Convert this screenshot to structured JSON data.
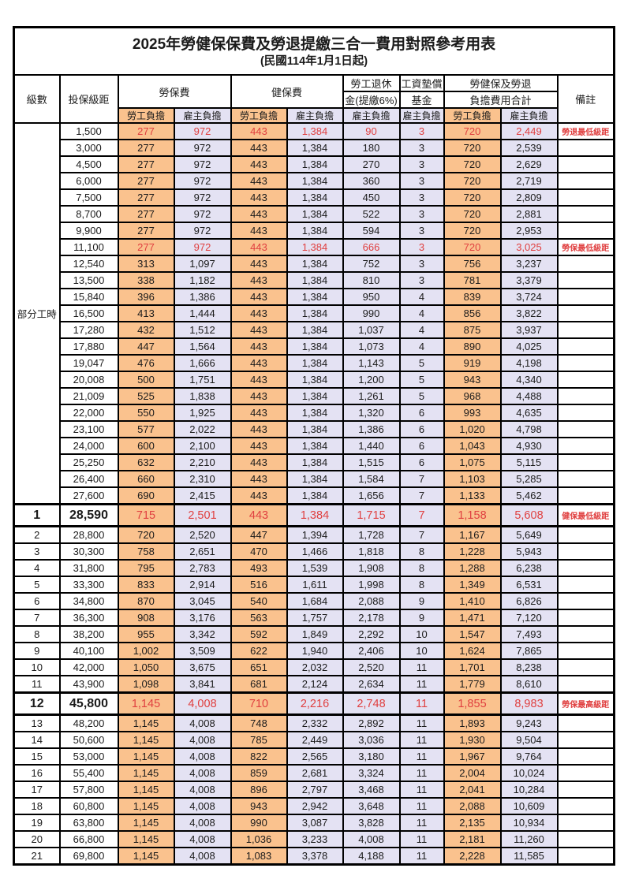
{
  "title": "2025年勞健保保費及勞退提繳三合一費用對照參考用表",
  "subtitle": "(民國114年1月1日起)",
  "colors": {
    "employee_bg": "#FAC28E",
    "employer_bg": "#E4E2F3",
    "highlight_red": "#E04040",
    "note_red": "#F26A6A",
    "border": "#000000"
  },
  "header": {
    "level": "級數",
    "bracket": "投保級距",
    "labor_ins": "勞保費",
    "health_ins": "健保費",
    "pension_l1": "勞工退休",
    "pension_l2": "金(提繳6%)",
    "wage_fund_l1": "工資墊償",
    "wage_fund_l2": "基金",
    "total_l1": "勞健保及勞退",
    "total_l2": "負擔費用合計",
    "employee": "勞工負擔",
    "employer": "雇主負擔",
    "remark": "備註"
  },
  "part_time_label": "部分工時",
  "part_time_rowspan": 23,
  "rows": [
    {
      "level": "",
      "bracket": "1,500",
      "v": [
        "277",
        "972",
        "443",
        "1,384",
        "90",
        "3",
        "720",
        "2,449"
      ],
      "note": "勞退最低級距",
      "red": true,
      "emph": false
    },
    {
      "level": "",
      "bracket": "3,000",
      "v": [
        "277",
        "972",
        "443",
        "1,384",
        "180",
        "3",
        "720",
        "2,539"
      ],
      "note": "",
      "red": false,
      "emph": false
    },
    {
      "level": "",
      "bracket": "4,500",
      "v": [
        "277",
        "972",
        "443",
        "1,384",
        "270",
        "3",
        "720",
        "2,629"
      ],
      "note": "",
      "red": false,
      "emph": false
    },
    {
      "level": "",
      "bracket": "6,000",
      "v": [
        "277",
        "972",
        "443",
        "1,384",
        "360",
        "3",
        "720",
        "2,719"
      ],
      "note": "",
      "red": false,
      "emph": false
    },
    {
      "level": "",
      "bracket": "7,500",
      "v": [
        "277",
        "972",
        "443",
        "1,384",
        "450",
        "3",
        "720",
        "2,809"
      ],
      "note": "",
      "red": false,
      "emph": false
    },
    {
      "level": "",
      "bracket": "8,700",
      "v": [
        "277",
        "972",
        "443",
        "1,384",
        "522",
        "3",
        "720",
        "2,881"
      ],
      "note": "",
      "red": false,
      "emph": false
    },
    {
      "level": "",
      "bracket": "9,900",
      "v": [
        "277",
        "972",
        "443",
        "1,384",
        "594",
        "3",
        "720",
        "2,953"
      ],
      "note": "",
      "red": false,
      "emph": false
    },
    {
      "level": "",
      "bracket": "11,100",
      "v": [
        "277",
        "972",
        "443",
        "1,384",
        "666",
        "3",
        "720",
        "3,025"
      ],
      "note": "勞保最低級距",
      "red": true,
      "emph": false
    },
    {
      "level": "",
      "bracket": "12,540",
      "v": [
        "313",
        "1,097",
        "443",
        "1,384",
        "752",
        "3",
        "756",
        "3,237"
      ],
      "note": "",
      "red": false,
      "emph": false
    },
    {
      "level": "",
      "bracket": "13,500",
      "v": [
        "338",
        "1,182",
        "443",
        "1,384",
        "810",
        "3",
        "781",
        "3,379"
      ],
      "note": "",
      "red": false,
      "emph": false
    },
    {
      "level": "",
      "bracket": "15,840",
      "v": [
        "396",
        "1,386",
        "443",
        "1,384",
        "950",
        "4",
        "839",
        "3,724"
      ],
      "note": "",
      "red": false,
      "emph": false
    },
    {
      "level": "",
      "bracket": "16,500",
      "v": [
        "413",
        "1,444",
        "443",
        "1,384",
        "990",
        "4",
        "856",
        "3,822"
      ],
      "note": "",
      "red": false,
      "emph": false
    },
    {
      "level": "",
      "bracket": "17,280",
      "v": [
        "432",
        "1,512",
        "443",
        "1,384",
        "1,037",
        "4",
        "875",
        "3,937"
      ],
      "note": "",
      "red": false,
      "emph": false
    },
    {
      "level": "",
      "bracket": "17,880",
      "v": [
        "447",
        "1,564",
        "443",
        "1,384",
        "1,073",
        "4",
        "890",
        "4,025"
      ],
      "note": "",
      "red": false,
      "emph": false
    },
    {
      "level": "",
      "bracket": "19,047",
      "v": [
        "476",
        "1,666",
        "443",
        "1,384",
        "1,143",
        "5",
        "919",
        "4,198"
      ],
      "note": "",
      "red": false,
      "emph": false
    },
    {
      "level": "",
      "bracket": "20,008",
      "v": [
        "500",
        "1,751",
        "443",
        "1,384",
        "1,200",
        "5",
        "943",
        "4,340"
      ],
      "note": "",
      "red": false,
      "emph": false
    },
    {
      "level": "",
      "bracket": "21,009",
      "v": [
        "525",
        "1,838",
        "443",
        "1,384",
        "1,261",
        "5",
        "968",
        "4,488"
      ],
      "note": "",
      "red": false,
      "emph": false
    },
    {
      "level": "",
      "bracket": "22,000",
      "v": [
        "550",
        "1,925",
        "443",
        "1,384",
        "1,320",
        "6",
        "993",
        "4,635"
      ],
      "note": "",
      "red": false,
      "emph": false
    },
    {
      "level": "",
      "bracket": "23,100",
      "v": [
        "577",
        "2,022",
        "443",
        "1,384",
        "1,386",
        "6",
        "1,020",
        "4,798"
      ],
      "note": "",
      "red": false,
      "emph": false
    },
    {
      "level": "",
      "bracket": "24,000",
      "v": [
        "600",
        "2,100",
        "443",
        "1,384",
        "1,440",
        "6",
        "1,043",
        "4,930"
      ],
      "note": "",
      "red": false,
      "emph": false
    },
    {
      "level": "",
      "bracket": "25,250",
      "v": [
        "632",
        "2,210",
        "443",
        "1,384",
        "1,515",
        "6",
        "1,075",
        "5,115"
      ],
      "note": "",
      "red": false,
      "emph": false
    },
    {
      "level": "",
      "bracket": "26,400",
      "v": [
        "660",
        "2,310",
        "443",
        "1,384",
        "1,584",
        "7",
        "1,103",
        "5,285"
      ],
      "note": "",
      "red": false,
      "emph": false
    },
    {
      "level": "",
      "bracket": "27,600",
      "v": [
        "690",
        "2,415",
        "443",
        "1,384",
        "1,656",
        "7",
        "1,133",
        "5,462"
      ],
      "note": "",
      "red": false,
      "emph": false
    },
    {
      "level": "1",
      "bracket": "28,590",
      "v": [
        "715",
        "2,501",
        "443",
        "1,384",
        "1,715",
        "7",
        "1,158",
        "5,608"
      ],
      "note": "健保最低級距",
      "red": true,
      "emph": true
    },
    {
      "level": "2",
      "bracket": "28,800",
      "v": [
        "720",
        "2,520",
        "447",
        "1,394",
        "1,728",
        "7",
        "1,167",
        "5,649"
      ],
      "note": "",
      "red": false,
      "emph": false
    },
    {
      "level": "3",
      "bracket": "30,300",
      "v": [
        "758",
        "2,651",
        "470",
        "1,466",
        "1,818",
        "8",
        "1,228",
        "5,943"
      ],
      "note": "",
      "red": false,
      "emph": false
    },
    {
      "level": "4",
      "bracket": "31,800",
      "v": [
        "795",
        "2,783",
        "493",
        "1,539",
        "1,908",
        "8",
        "1,288",
        "6,238"
      ],
      "note": "",
      "red": false,
      "emph": false
    },
    {
      "level": "5",
      "bracket": "33,300",
      "v": [
        "833",
        "2,914",
        "516",
        "1,611",
        "1,998",
        "8",
        "1,349",
        "6,531"
      ],
      "note": "",
      "red": false,
      "emph": false
    },
    {
      "level": "6",
      "bracket": "34,800",
      "v": [
        "870",
        "3,045",
        "540",
        "1,684",
        "2,088",
        "9",
        "1,410",
        "6,826"
      ],
      "note": "",
      "red": false,
      "emph": false
    },
    {
      "level": "7",
      "bracket": "36,300",
      "v": [
        "908",
        "3,176",
        "563",
        "1,757",
        "2,178",
        "9",
        "1,471",
        "7,120"
      ],
      "note": "",
      "red": false,
      "emph": false
    },
    {
      "level": "8",
      "bracket": "38,200",
      "v": [
        "955",
        "3,342",
        "592",
        "1,849",
        "2,292",
        "10",
        "1,547",
        "7,493"
      ],
      "note": "",
      "red": false,
      "emph": false
    },
    {
      "level": "9",
      "bracket": "40,100",
      "v": [
        "1,002",
        "3,509",
        "622",
        "1,940",
        "2,406",
        "10",
        "1,624",
        "7,865"
      ],
      "note": "",
      "red": false,
      "emph": false
    },
    {
      "level": "10",
      "bracket": "42,000",
      "v": [
        "1,050",
        "3,675",
        "651",
        "2,032",
        "2,520",
        "11",
        "1,701",
        "8,238"
      ],
      "note": "",
      "red": false,
      "emph": false
    },
    {
      "level": "11",
      "bracket": "43,900",
      "v": [
        "1,098",
        "3,841",
        "681",
        "2,124",
        "2,634",
        "11",
        "1,779",
        "8,610"
      ],
      "note": "",
      "red": false,
      "emph": false
    },
    {
      "level": "12",
      "bracket": "45,800",
      "v": [
        "1,145",
        "4,008",
        "710",
        "2,216",
        "2,748",
        "11",
        "1,855",
        "8,983"
      ],
      "note": "勞保最高級距",
      "red": true,
      "emph": true
    },
    {
      "level": "13",
      "bracket": "48,200",
      "v": [
        "1,145",
        "4,008",
        "748",
        "2,332",
        "2,892",
        "11",
        "1,893",
        "9,243"
      ],
      "note": "",
      "red": false,
      "emph": false
    },
    {
      "level": "14",
      "bracket": "50,600",
      "v": [
        "1,145",
        "4,008",
        "785",
        "2,449",
        "3,036",
        "11",
        "1,930",
        "9,504"
      ],
      "note": "",
      "red": false,
      "emph": false
    },
    {
      "level": "15",
      "bracket": "53,000",
      "v": [
        "1,145",
        "4,008",
        "822",
        "2,565",
        "3,180",
        "11",
        "1,967",
        "9,764"
      ],
      "note": "",
      "red": false,
      "emph": false
    },
    {
      "level": "16",
      "bracket": "55,400",
      "v": [
        "1,145",
        "4,008",
        "859",
        "2,681",
        "3,324",
        "11",
        "2,004",
        "10,024"
      ],
      "note": "",
      "red": false,
      "emph": false
    },
    {
      "level": "17",
      "bracket": "57,800",
      "v": [
        "1,145",
        "4,008",
        "896",
        "2,797",
        "3,468",
        "11",
        "2,041",
        "10,284"
      ],
      "note": "",
      "red": false,
      "emph": false
    },
    {
      "level": "18",
      "bracket": "60,800",
      "v": [
        "1,145",
        "4,008",
        "943",
        "2,942",
        "3,648",
        "11",
        "2,088",
        "10,609"
      ],
      "note": "",
      "red": false,
      "emph": false
    },
    {
      "level": "19",
      "bracket": "63,800",
      "v": [
        "1,145",
        "4,008",
        "990",
        "3,087",
        "3,828",
        "11",
        "2,135",
        "10,934"
      ],
      "note": "",
      "red": false,
      "emph": false
    },
    {
      "level": "20",
      "bracket": "66,800",
      "v": [
        "1,145",
        "4,008",
        "1,036",
        "3,233",
        "4,008",
        "11",
        "2,181",
        "11,260"
      ],
      "note": "",
      "red": false,
      "emph": false
    },
    {
      "level": "21",
      "bracket": "69,800",
      "v": [
        "1,145",
        "4,008",
        "1,083",
        "3,378",
        "4,188",
        "11",
        "2,228",
        "11,585"
      ],
      "note": "",
      "red": false,
      "emph": false
    }
  ]
}
